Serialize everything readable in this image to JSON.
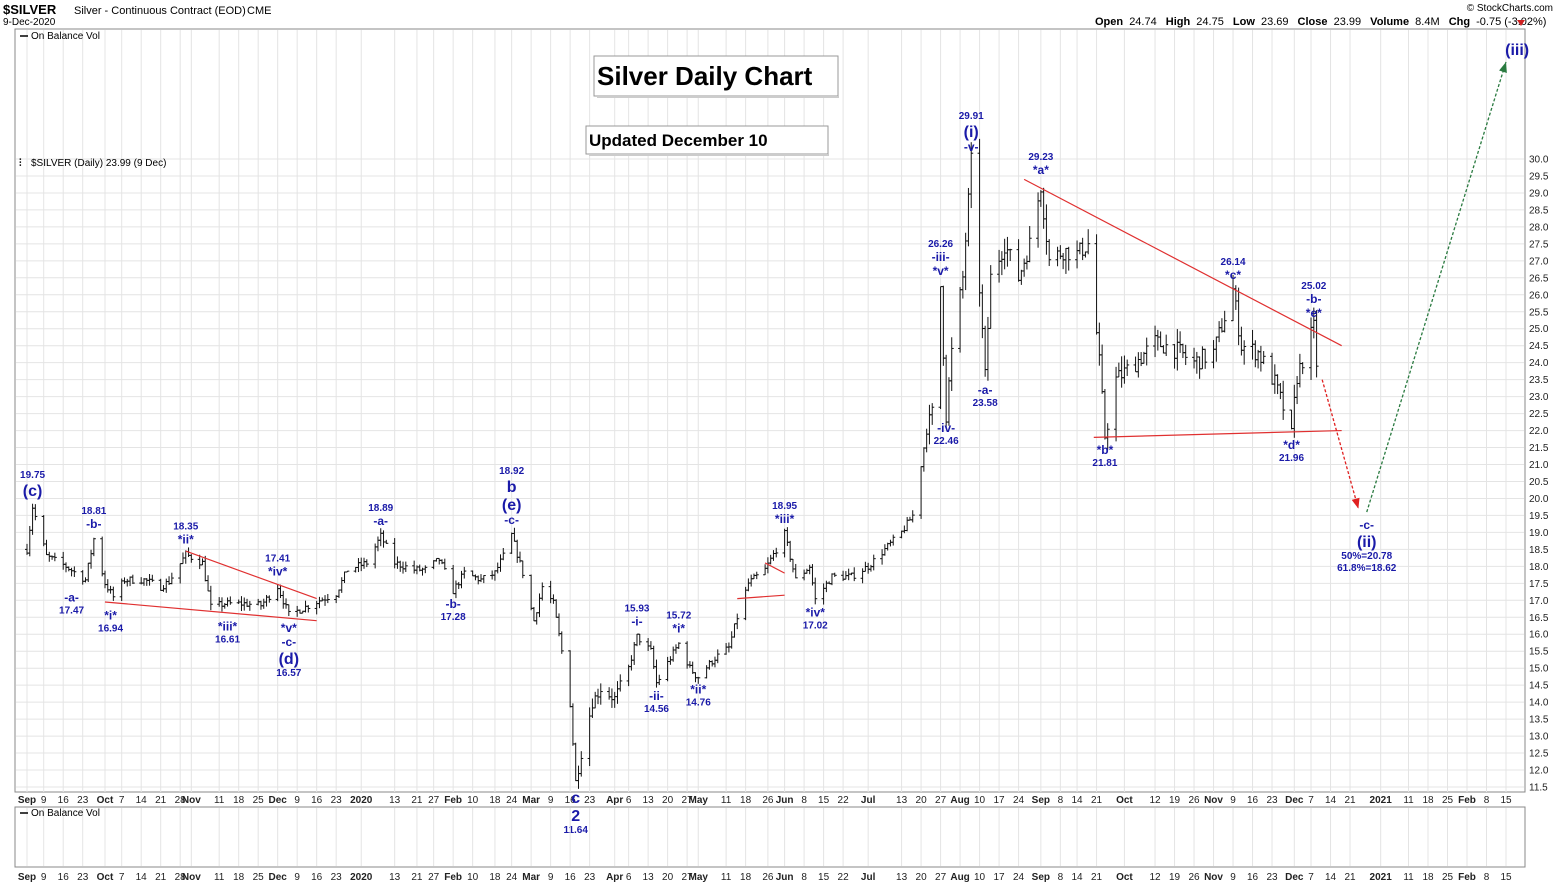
{
  "header": {
    "symbol": "$SILVER",
    "name": "Silver - Continuous Contract (EOD)",
    "exchange": "CME",
    "date": "9-Dec-2020",
    "credit": "© StockCharts.com",
    "open_label": "Open",
    "open": "24.74",
    "high_label": "High",
    "high": "24.75",
    "low_label": "Low",
    "low": "23.69",
    "close_label": "Close",
    "close": "23.99",
    "volume_label": "Volume",
    "volume": "8.4M",
    "chg_label": "Chg",
    "chg": "-0.75 (-3.02%)"
  },
  "panels": {
    "obv_top": "On Balance Vol",
    "price_legend": "$SILVER (Daily) 23.99 (9 Dec)",
    "obv_bottom": "On Balance Vol"
  },
  "boxes": {
    "title": "Silver Daily Chart",
    "updated": "Updated December 10"
  },
  "colors": {
    "wave_label": "#1a1aa8",
    "trendline": "#e03030",
    "projection_down": "#e02020",
    "projection_up": "#2a7a40",
    "grid": "#e4e4e4",
    "bar": "#111111"
  },
  "chart_data": {
    "type": "ohlc",
    "ylim": [
      11.5,
      30.0
    ],
    "y_ticks": [
      "30.0",
      "29.5",
      "29.0",
      "28.5",
      "28.0",
      "27.5",
      "27.0",
      "26.5",
      "26.0",
      "25.5",
      "25.0",
      "24.5",
      "24.0",
      "23.5",
      "23.0",
      "22.5",
      "22.0",
      "21.5",
      "21.0",
      "20.5",
      "20.0",
      "19.5",
      "19.0",
      "18.5",
      "18.0",
      "17.5",
      "17.0",
      "16.5",
      "16.0",
      "15.5",
      "15.0",
      "14.5",
      "14.0",
      "13.5",
      "13.0",
      "12.5",
      "12.0",
      "11.5"
    ],
    "x_range": [
      "2019-09-03",
      "2021-02-15"
    ],
    "x_ticks": [
      {
        "label": "Sep",
        "date": "2019-09-03",
        "bold": true
      },
      {
        "label": "9",
        "date": "2019-09-09"
      },
      {
        "label": "16",
        "date": "2019-09-16"
      },
      {
        "label": "23",
        "date": "2019-09-23"
      },
      {
        "label": "Oct",
        "date": "2019-10-01",
        "bold": true
      },
      {
        "label": "7",
        "date": "2019-10-07"
      },
      {
        "label": "14",
        "date": "2019-10-14"
      },
      {
        "label": "21",
        "date": "2019-10-21"
      },
      {
        "label": "28",
        "date": "2019-10-28"
      },
      {
        "label": "Nov",
        "date": "2019-11-01",
        "bold": true
      },
      {
        "label": "11",
        "date": "2019-11-11"
      },
      {
        "label": "18",
        "date": "2019-11-18"
      },
      {
        "label": "25",
        "date": "2019-11-25"
      },
      {
        "label": "Dec",
        "date": "2019-12-02",
        "bold": true
      },
      {
        "label": "9",
        "date": "2019-12-09"
      },
      {
        "label": "16",
        "date": "2019-12-16"
      },
      {
        "label": "23",
        "date": "2019-12-23"
      },
      {
        "label": "2020",
        "date": "2020-01-01",
        "bold": true
      },
      {
        "label": "13",
        "date": "2020-01-13"
      },
      {
        "label": "21",
        "date": "2020-01-21"
      },
      {
        "label": "27",
        "date": "2020-01-27"
      },
      {
        "label": "Feb",
        "date": "2020-02-03",
        "bold": true
      },
      {
        "label": "10",
        "date": "2020-02-10"
      },
      {
        "label": "18",
        "date": "2020-02-18"
      },
      {
        "label": "24",
        "date": "2020-02-24"
      },
      {
        "label": "Mar",
        "date": "2020-03-02",
        "bold": true
      },
      {
        "label": "9",
        "date": "2020-03-09"
      },
      {
        "label": "16",
        "date": "2020-03-16"
      },
      {
        "label": "23",
        "date": "2020-03-23"
      },
      {
        "label": "Apr",
        "date": "2020-04-01",
        "bold": true
      },
      {
        "label": "6",
        "date": "2020-04-06"
      },
      {
        "label": "13",
        "date": "2020-04-13"
      },
      {
        "label": "20",
        "date": "2020-04-20"
      },
      {
        "label": "27",
        "date": "2020-04-27"
      },
      {
        "label": "May",
        "date": "2020-05-01",
        "bold": true
      },
      {
        "label": "11",
        "date": "2020-05-11"
      },
      {
        "label": "18",
        "date": "2020-05-18"
      },
      {
        "label": "26",
        "date": "2020-05-26"
      },
      {
        "label": "Jun",
        "date": "2020-06-01",
        "bold": true
      },
      {
        "label": "8",
        "date": "2020-06-08"
      },
      {
        "label": "15",
        "date": "2020-06-15"
      },
      {
        "label": "22",
        "date": "2020-06-22"
      },
      {
        "label": "Jul",
        "date": "2020-07-01",
        "bold": true
      },
      {
        "label": "13",
        "date": "2020-07-13"
      },
      {
        "label": "20",
        "date": "2020-07-20"
      },
      {
        "label": "27",
        "date": "2020-07-27"
      },
      {
        "label": "Aug",
        "date": "2020-08-03",
        "bold": true
      },
      {
        "label": "10",
        "date": "2020-08-10"
      },
      {
        "label": "17",
        "date": "2020-08-17"
      },
      {
        "label": "24",
        "date": "2020-08-24"
      },
      {
        "label": "Sep",
        "date": "2020-09-01",
        "bold": true
      },
      {
        "label": "8",
        "date": "2020-09-08"
      },
      {
        "label": "14",
        "date": "2020-09-14"
      },
      {
        "label": "21",
        "date": "2020-09-21"
      },
      {
        "label": "Oct",
        "date": "2020-10-01",
        "bold": true
      },
      {
        "label": "12",
        "date": "2020-10-12"
      },
      {
        "label": "19",
        "date": "2020-10-19"
      },
      {
        "label": "26",
        "date": "2020-10-26"
      },
      {
        "label": "Nov",
        "date": "2020-11-02",
        "bold": true
      },
      {
        "label": "9",
        "date": "2020-11-09"
      },
      {
        "label": "16",
        "date": "2020-11-16"
      },
      {
        "label": "23",
        "date": "2020-11-23"
      },
      {
        "label": "Dec",
        "date": "2020-12-01",
        "bold": true
      },
      {
        "label": "7",
        "date": "2020-12-07"
      },
      {
        "label": "14",
        "date": "2020-12-14"
      },
      {
        "label": "21",
        "date": "2020-12-21"
      },
      {
        "label": "2021",
        "date": "2021-01-01",
        "bold": true
      },
      {
        "label": "11",
        "date": "2021-01-11"
      },
      {
        "label": "18",
        "date": "2021-01-18"
      },
      {
        "label": "25",
        "date": "2021-01-25"
      },
      {
        "label": "Feb",
        "date": "2021-02-01",
        "bold": true
      },
      {
        "label": "8",
        "date": "2021-02-08"
      },
      {
        "label": "15",
        "date": "2021-02-15"
      }
    ],
    "price_path": [
      [
        "2019-09-03",
        18.5
      ],
      [
        "2019-09-05",
        19.75
      ],
      [
        "2019-09-10",
        18.3
      ],
      [
        "2019-09-17",
        18.0
      ],
      [
        "2019-09-24",
        17.6
      ],
      [
        "2019-09-27",
        18.81
      ],
      [
        "2019-10-01",
        17.5
      ],
      [
        "2019-10-04",
        17.1
      ],
      [
        "2019-10-08",
        17.6
      ],
      [
        "2019-10-15",
        17.6
      ],
      [
        "2019-10-21",
        17.4
      ],
      [
        "2019-10-24",
        17.55
      ],
      [
        "2019-10-30",
        18.35
      ],
      [
        "2019-11-05",
        18.1
      ],
      [
        "2019-11-08",
        16.8
      ],
      [
        "2019-11-13",
        16.9
      ],
      [
        "2019-11-20",
        16.9
      ],
      [
        "2019-11-26",
        16.85
      ],
      [
        "2019-12-02",
        17.41
      ],
      [
        "2019-12-06",
        16.57
      ],
      [
        "2019-12-12",
        16.8
      ],
      [
        "2019-12-17",
        17.0
      ],
      [
        "2019-12-23",
        17.2
      ],
      [
        "2019-12-27",
        17.9
      ],
      [
        "2020-01-03",
        18.1
      ],
      [
        "2020-01-08",
        18.89
      ],
      [
        "2020-01-13",
        18.1
      ],
      [
        "2020-01-20",
        17.9
      ],
      [
        "2020-01-24",
        17.9
      ],
      [
        "2020-01-29",
        18.2
      ],
      [
        "2020-02-03",
        17.28
      ],
      [
        "2020-02-07",
        17.8
      ],
      [
        "2020-02-13",
        17.6
      ],
      [
        "2020-02-18",
        17.8
      ],
      [
        "2020-02-21",
        18.3
      ],
      [
        "2020-02-24",
        18.92
      ],
      [
        "2020-02-28",
        17.8
      ],
      [
        "2020-03-03",
        16.4
      ],
      [
        "2020-03-06",
        17.4
      ],
      [
        "2020-03-10",
        16.9
      ],
      [
        "2020-03-13",
        15.5
      ],
      [
        "2020-03-16",
        14.0
      ],
      [
        "2020-03-18",
        11.64
      ],
      [
        "2020-03-20",
        12.5
      ],
      [
        "2020-03-24",
        14.0
      ],
      [
        "2020-03-27",
        14.4
      ],
      [
        "2020-04-01",
        14.1
      ],
      [
        "2020-04-06",
        15.0
      ],
      [
        "2020-04-09",
        15.93
      ],
      [
        "2020-04-14",
        15.5
      ],
      [
        "2020-04-16",
        14.56
      ],
      [
        "2020-04-21",
        15.3
      ],
      [
        "2020-04-24",
        15.72
      ],
      [
        "2020-04-28",
        15.0
      ],
      [
        "2020-05-01",
        14.76
      ],
      [
        "2020-05-07",
        15.3
      ],
      [
        "2020-05-12",
        15.6
      ],
      [
        "2020-05-15",
        16.5
      ],
      [
        "2020-05-19",
        17.5
      ],
      [
        "2020-05-25",
        17.9
      ],
      [
        "2020-06-01",
        18.95
      ],
      [
        "2020-06-05",
        17.6
      ],
      [
        "2020-06-10",
        18.0
      ],
      [
        "2020-06-12",
        17.02
      ],
      [
        "2020-06-18",
        17.7
      ],
      [
        "2020-06-25",
        17.7
      ],
      [
        "2020-07-01",
        18.0
      ],
      [
        "2020-07-07",
        18.5
      ],
      [
        "2020-07-13",
        19.0
      ],
      [
        "2020-07-17",
        19.5
      ],
      [
        "2020-07-22",
        22.0
      ],
      [
        "2020-07-24",
        22.5
      ],
      [
        "2020-07-27",
        26.26
      ],
      [
        "2020-07-29",
        22.46
      ],
      [
        "2020-07-31",
        24.3
      ],
      [
        "2020-08-04",
        26.5
      ],
      [
        "2020-08-07",
        29.91
      ],
      [
        "2020-08-10",
        26.2
      ],
      [
        "2020-08-12",
        23.58
      ],
      [
        "2020-08-14",
        26.5
      ],
      [
        "2020-08-19",
        27.5
      ],
      [
        "2020-08-24",
        26.5
      ],
      [
        "2020-08-28",
        27.5
      ],
      [
        "2020-09-01",
        29.23
      ],
      [
        "2020-09-04",
        27.0
      ],
      [
        "2020-09-09",
        27.3
      ],
      [
        "2020-09-14",
        27.2
      ],
      [
        "2020-09-18",
        27.5
      ],
      [
        "2020-09-22",
        24.0
      ],
      [
        "2020-09-24",
        21.81
      ],
      [
        "2020-09-28",
        23.5
      ],
      [
        "2020-10-05",
        24.0
      ],
      [
        "2020-10-12",
        24.6
      ],
      [
        "2020-10-19",
        24.4
      ],
      [
        "2020-10-26",
        24.0
      ],
      [
        "2020-11-02",
        24.3
      ],
      [
        "2020-11-09",
        26.14
      ],
      [
        "2020-11-12",
        24.5
      ],
      [
        "2020-11-18",
        24.3
      ],
      [
        "2020-11-24",
        23.4
      ],
      [
        "2020-11-30",
        21.96
      ],
      [
        "2020-12-02",
        23.6
      ],
      [
        "2020-12-07",
        24.8
      ],
      [
        "2020-12-08",
        25.02
      ],
      [
        "2020-12-09",
        23.99
      ]
    ],
    "labels": [
      {
        "lines": [
          "19.75",
          "(c)"
        ],
        "date": "2019-09-05",
        "price": 19.75,
        "pos": "above"
      },
      {
        "lines": [
          "18.81",
          "-b-"
        ],
        "date": "2019-09-27",
        "price": 18.81,
        "pos": "above"
      },
      {
        "lines": [
          "-a-",
          "17.47"
        ],
        "date": "2019-09-19",
        "price": 17.47,
        "pos": "below"
      },
      {
        "lines": [
          "*i*",
          "16.94"
        ],
        "date": "2019-10-03",
        "price": 16.94,
        "pos": "below"
      },
      {
        "lines": [
          "18.35",
          "*ii*"
        ],
        "date": "2019-10-30",
        "price": 18.35,
        "pos": "above"
      },
      {
        "lines": [
          "*iii*",
          "16.61"
        ],
        "date": "2019-11-14",
        "price": 16.61,
        "pos": "below"
      },
      {
        "lines": [
          "17.41",
          "*iv*"
        ],
        "date": "2019-12-02",
        "price": 17.41,
        "pos": "above"
      },
      {
        "lines": [
          "*v*",
          "-c-",
          "(d)",
          "16.57"
        ],
        "date": "2019-12-06",
        "price": 16.57,
        "pos": "below"
      },
      {
        "lines": [
          "18.89",
          "-a-"
        ],
        "date": "2020-01-08",
        "price": 18.89,
        "pos": "above"
      },
      {
        "lines": [
          "-b-",
          "17.28"
        ],
        "date": "2020-02-03",
        "price": 17.28,
        "pos": "below"
      },
      {
        "lines": [
          "18.92",
          "b",
          "(e)",
          "-c-"
        ],
        "date": "2020-02-24",
        "price": 18.92,
        "pos": "above"
      },
      {
        "lines": [
          "c",
          "2",
          "11.64"
        ],
        "date": "2020-03-18",
        "price": 11.64,
        "pos": "below"
      },
      {
        "lines": [
          "15.93",
          "-i-"
        ],
        "date": "2020-04-09",
        "price": 15.93,
        "pos": "above"
      },
      {
        "lines": [
          "-ii-",
          "14.56"
        ],
        "date": "2020-04-16",
        "price": 14.56,
        "pos": "below"
      },
      {
        "lines": [
          "15.72",
          "*i*"
        ],
        "date": "2020-04-24",
        "price": 15.72,
        "pos": "above"
      },
      {
        "lines": [
          "*ii*",
          "14.76"
        ],
        "date": "2020-05-01",
        "price": 14.76,
        "pos": "below"
      },
      {
        "lines": [
          "18.95",
          "*iii*"
        ],
        "date": "2020-06-01",
        "price": 18.95,
        "pos": "above"
      },
      {
        "lines": [
          "*iv*",
          "17.02"
        ],
        "date": "2020-06-12",
        "price": 17.02,
        "pos": "below"
      },
      {
        "lines": [
          "26.26",
          "-iii-",
          "*v*"
        ],
        "date": "2020-07-27",
        "price": 26.26,
        "pos": "above"
      },
      {
        "lines": [
          "-iv-",
          "22.46"
        ],
        "date": "2020-07-29",
        "price": 22.46,
        "pos": "below"
      },
      {
        "lines": [
          "29.91",
          "(i)",
          "-v-"
        ],
        "date": "2020-08-07",
        "price": 29.91,
        "pos": "above"
      },
      {
        "lines": [
          "-a-",
          "23.58"
        ],
        "date": "2020-08-12",
        "price": 23.58,
        "pos": "below"
      },
      {
        "lines": [
          "29.23",
          "*a*"
        ],
        "date": "2020-09-01",
        "price": 29.23,
        "pos": "above"
      },
      {
        "lines": [
          "*b*",
          "21.81"
        ],
        "date": "2020-09-24",
        "price": 21.81,
        "pos": "below"
      },
      {
        "lines": [
          "26.14",
          "*c*"
        ],
        "date": "2020-11-09",
        "price": 26.14,
        "pos": "above"
      },
      {
        "lines": [
          "*d*",
          "21.96"
        ],
        "date": "2020-11-30",
        "price": 21.96,
        "pos": "below"
      },
      {
        "lines": [
          "25.02",
          "-b-",
          "*e*"
        ],
        "date": "2020-12-08",
        "price": 25.02,
        "pos": "above"
      },
      {
        "lines": [
          "-c-",
          "(ii)",
          "50%=20.78",
          "61.8%=18.62"
        ],
        "date": "2020-12-27",
        "price": 19.6,
        "pos": "below"
      },
      {
        "lines": [
          "(iii)"
        ],
        "date": "2021-02-19",
        "price": 34.0,
        "pos": "at"
      }
    ],
    "trendlines": [
      {
        "from": [
          "2019-10-30",
          18.45
        ],
        "to": [
          "2019-12-16",
          17.05
        ]
      },
      {
        "from": [
          "2019-10-01",
          16.95
        ],
        "to": [
          "2019-12-16",
          16.4
        ]
      },
      {
        "from": [
          "2020-05-25",
          18.1
        ],
        "to": [
          "2020-06-01",
          17.8
        ]
      },
      {
        "from": [
          "2020-05-15",
          17.05
        ],
        "to": [
          "2020-06-01",
          17.15
        ]
      },
      {
        "from": [
          "2020-08-26",
          29.4
        ],
        "to": [
          "2020-12-18",
          24.5
        ]
      },
      {
        "from": [
          "2020-09-20",
          21.8
        ],
        "to": [
          "2020-12-18",
          22.0
        ]
      }
    ],
    "projections": [
      {
        "name": "down",
        "from": [
          "2020-12-11",
          23.5
        ],
        "to": [
          "2020-12-24",
          19.7
        ]
      },
      {
        "name": "up",
        "from": [
          "2020-12-27",
          19.6
        ],
        "to": [
          "2021-02-15",
          34.0
        ]
      }
    ]
  }
}
